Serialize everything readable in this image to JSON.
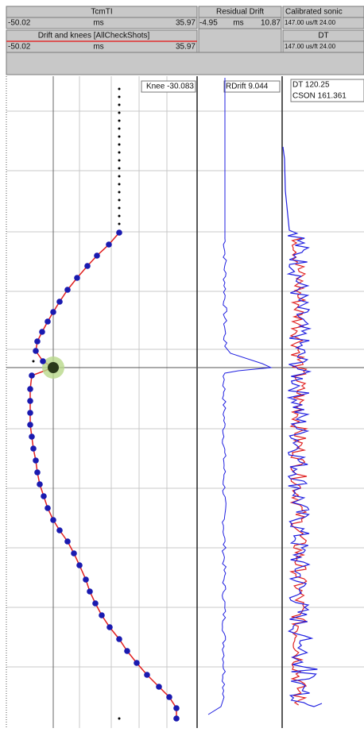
{
  "header": {
    "track1": {
      "title": "TcmTI",
      "min": "-50.02",
      "unit": "ms",
      "max": "35.97",
      "subtitle": "Drift and knees [AllCheckShots]",
      "sub_min": "-50.02",
      "sub_unit": "ms",
      "sub_max": "35.97"
    },
    "track2": {
      "title": "Residual Drift",
      "min": "-4.95",
      "unit": "ms",
      "max": "10.87"
    },
    "track3": {
      "title": "Calibrated sonic",
      "scale": "147.00 us/ft 24.00",
      "subtitle": "DT",
      "sub_scale": "147.00 us/ft 24.00"
    }
  },
  "annotations": {
    "knee": "Knee -30.083",
    "rdrift": "RDrift 9.044",
    "dt": "DT 120.25",
    "cson": "CSON 161.361"
  }
}
